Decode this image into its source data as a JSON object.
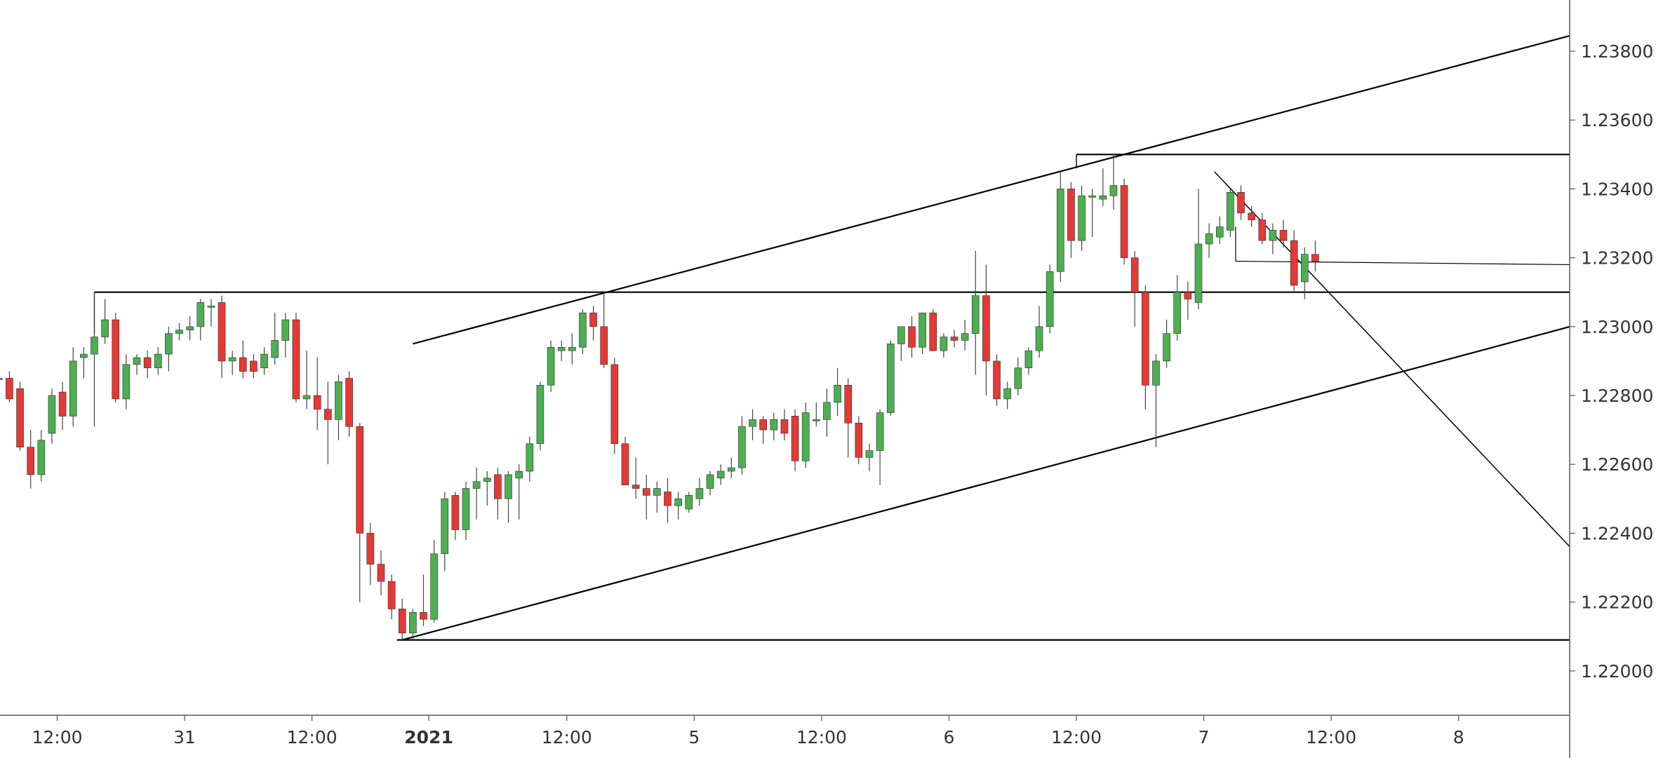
{
  "chart_data": {
    "type": "candlestick",
    "title": "",
    "xlabel": "",
    "ylabel": "",
    "ylim": [
      1.219,
      1.2395
    ],
    "grid": false,
    "colors": {
      "up": "#4caf50",
      "down": "#e53935",
      "wick": "#444444",
      "line": "#000000",
      "axis": "#333333"
    },
    "y_ticks": [
      "1.23800",
      "1.23600",
      "1.23400",
      "1.23200",
      "1.23000",
      "1.22800",
      "1.22600",
      "1.22400",
      "1.22200",
      "1.22000"
    ],
    "x_ticks": [
      {
        "label": "12:00",
        "bar": 5.5,
        "bold": false
      },
      {
        "label": "31",
        "bar": 17.5,
        "bold": false
      },
      {
        "label": "12:00",
        "bar": 29.5,
        "bold": false
      },
      {
        "label": "2021",
        "bar": 40.5,
        "bold": true
      },
      {
        "label": "12:00",
        "bar": 53.5,
        "bold": false
      },
      {
        "label": "5",
        "bar": 65.5,
        "bold": false
      },
      {
        "label": "12:00",
        "bar": 77.5,
        "bold": false
      },
      {
        "label": "6",
        "bar": 89.5,
        "bold": false
      },
      {
        "label": "12:00",
        "bar": 101.5,
        "bold": false
      },
      {
        "label": "7",
        "bar": 113.5,
        "bold": false
      },
      {
        "label": "12:00",
        "bar": 125.5,
        "bold": false
      },
      {
        "label": "8",
        "bar": 137.5,
        "bold": false
      }
    ],
    "candles": [
      [
        1.2285,
        1.2288,
        1.2283,
        1.2285
      ],
      [
        1.2285,
        1.2287,
        1.2278,
        1.2279
      ],
      [
        1.2282,
        1.2284,
        1.2264,
        1.2265
      ],
      [
        1.2265,
        1.227,
        1.2253,
        1.2257
      ],
      [
        1.2257,
        1.227,
        1.2255,
        1.2267
      ],
      [
        1.2269,
        1.2282,
        1.2266,
        1.228
      ],
      [
        1.2281,
        1.2284,
        1.227,
        1.2274
      ],
      [
        1.2274,
        1.2294,
        1.2271,
        1.229
      ],
      [
        1.2291,
        1.2294,
        1.2285,
        1.2292
      ],
      [
        1.2292,
        1.231,
        1.2271,
        1.2297
      ],
      [
        1.2297,
        1.2308,
        1.2295,
        1.2302
      ],
      [
        1.2302,
        1.2304,
        1.2278,
        1.2279
      ],
      [
        1.2279,
        1.2292,
        1.2276,
        1.2289
      ],
      [
        1.2289,
        1.2292,
        1.2286,
        1.2291
      ],
      [
        1.2291,
        1.2293,
        1.2285,
        1.2288
      ],
      [
        1.2288,
        1.2294,
        1.2286,
        1.2292
      ],
      [
        1.2292,
        1.23,
        1.2287,
        1.2298
      ],
      [
        1.2298,
        1.2301,
        1.2296,
        1.2299
      ],
      [
        1.2299,
        1.2303,
        1.2296,
        1.23
      ],
      [
        1.23,
        1.2308,
        1.2296,
        1.2307
      ],
      [
        1.2306,
        1.2308,
        1.23,
        1.2306
      ],
      [
        1.2307,
        1.2309,
        1.2285,
        1.229
      ],
      [
        1.229,
        1.2293,
        1.2286,
        1.2291
      ],
      [
        1.2291,
        1.2296,
        1.2285,
        1.2287
      ],
      [
        1.229,
        1.2292,
        1.2285,
        1.2287
      ],
      [
        1.2288,
        1.2294,
        1.2286,
        1.2292
      ],
      [
        1.2291,
        1.2304,
        1.2289,
        1.2296
      ],
      [
        1.2296,
        1.2304,
        1.2291,
        1.2302
      ],
      [
        1.2302,
        1.2304,
        1.2278,
        1.2279
      ],
      [
        1.2279,
        1.2293,
        1.2276,
        1.228
      ],
      [
        1.228,
        1.2291,
        1.227,
        1.2276
      ],
      [
        1.2276,
        1.2284,
        1.226,
        1.2273
      ],
      [
        1.2273,
        1.2286,
        1.2267,
        1.2284
      ],
      [
        1.2285,
        1.2287,
        1.2268,
        1.2271
      ],
      [
        1.2271,
        1.2272,
        1.222,
        1.224
      ],
      [
        1.224,
        1.2243,
        1.2225,
        1.2231
      ],
      [
        1.2231,
        1.2235,
        1.2222,
        1.2226
      ],
      [
        1.2226,
        1.2228,
        1.2215,
        1.2218
      ],
      [
        1.2218,
        1.2221,
        1.2209,
        1.2211
      ],
      [
        1.2211,
        1.2218,
        1.2209,
        1.2217
      ],
      [
        1.2217,
        1.2228,
        1.2213,
        1.2215
      ],
      [
        1.2215,
        1.2238,
        1.2214,
        1.2234
      ],
      [
        1.2234,
        1.2252,
        1.2229,
        1.225
      ],
      [
        1.2251,
        1.2252,
        1.2238,
        1.2241
      ],
      [
        1.2241,
        1.2255,
        1.2238,
        1.2253
      ],
      [
        1.2253,
        1.2259,
        1.2244,
        1.2255
      ],
      [
        1.2255,
        1.2258,
        1.2248,
        1.2256
      ],
      [
        1.2257,
        1.2259,
        1.2244,
        1.225
      ],
      [
        1.225,
        1.2258,
        1.2243,
        1.2257
      ],
      [
        1.2256,
        1.226,
        1.2244,
        1.2258
      ],
      [
        1.2258,
        1.2268,
        1.2255,
        1.2266
      ],
      [
        1.2266,
        1.2284,
        1.2264,
        1.2283
      ],
      [
        1.2283,
        1.2296,
        1.2281,
        1.2294
      ],
      [
        1.2293,
        1.2296,
        1.229,
        1.2294
      ],
      [
        1.2293,
        1.2298,
        1.2289,
        1.2294
      ],
      [
        1.2294,
        1.2305,
        1.2292,
        1.2304
      ],
      [
        1.2304,
        1.2306,
        1.2296,
        1.23
      ],
      [
        1.23,
        1.231,
        1.2288,
        1.2289
      ],
      [
        1.2289,
        1.2291,
        1.2263,
        1.2266
      ],
      [
        1.2266,
        1.2268,
        1.2254,
        1.2254
      ],
      [
        1.2254,
        1.2262,
        1.225,
        1.2253
      ],
      [
        1.2253,
        1.2257,
        1.2244,
        1.2251
      ],
      [
        1.2251,
        1.2255,
        1.2246,
        1.2253
      ],
      [
        1.2252,
        1.2256,
        1.2243,
        1.2248
      ],
      [
        1.2248,
        1.2252,
        1.2244,
        1.225
      ],
      [
        1.2247,
        1.2252,
        1.2246,
        1.2251
      ],
      [
        1.225,
        1.2256,
        1.2248,
        1.2253
      ],
      [
        1.2253,
        1.2258,
        1.2251,
        1.2257
      ],
      [
        1.2256,
        1.226,
        1.2254,
        1.2258
      ],
      [
        1.2258,
        1.2262,
        1.2256,
        1.2259
      ],
      [
        1.2259,
        1.2274,
        1.2257,
        1.2271
      ],
      [
        1.2271,
        1.2276,
        1.2267,
        1.2273
      ],
      [
        1.2273,
        1.2274,
        1.2266,
        1.227
      ],
      [
        1.227,
        1.2275,
        1.2267,
        1.2273
      ],
      [
        1.2273,
        1.2276,
        1.2267,
        1.2269
      ],
      [
        1.2274,
        1.2276,
        1.2258,
        1.2261
      ],
      [
        1.2261,
        1.2278,
        1.2259,
        1.2275
      ],
      [
        1.2273,
        1.2278,
        1.2271,
        1.2273
      ],
      [
        1.2273,
        1.2282,
        1.2268,
        1.2278
      ],
      [
        1.2278,
        1.2288,
        1.2274,
        1.2283
      ],
      [
        1.2283,
        1.2285,
        1.2262,
        1.2272
      ],
      [
        1.2272,
        1.2274,
        1.226,
        1.2262
      ],
      [
        1.2262,
        1.2266,
        1.2258,
        1.2264
      ],
      [
        1.2264,
        1.2276,
        1.2254,
        1.2275
      ],
      [
        1.2275,
        1.2296,
        1.2274,
        1.2295
      ],
      [
        1.2295,
        1.23,
        1.229,
        1.23
      ],
      [
        1.23,
        1.2303,
        1.2291,
        1.2294
      ],
      [
        1.2294,
        1.2304,
        1.2292,
        1.2304
      ],
      [
        1.2304,
        1.2305,
        1.2293,
        1.2293
      ],
      [
        1.2293,
        1.2298,
        1.2291,
        1.2297
      ],
      [
        1.2297,
        1.2299,
        1.2294,
        1.2296
      ],
      [
        1.2296,
        1.2302,
        1.2293,
        1.2298
      ],
      [
        1.2298,
        1.2322,
        1.2286,
        1.2309
      ],
      [
        1.2309,
        1.2318,
        1.228,
        1.229
      ],
      [
        1.229,
        1.2292,
        1.2277,
        1.2279
      ],
      [
        1.2279,
        1.2284,
        1.2276,
        1.2282
      ],
      [
        1.2282,
        1.2291,
        1.228,
        1.2288
      ],
      [
        1.2288,
        1.2294,
        1.2286,
        1.2293
      ],
      [
        1.2293,
        1.2306,
        1.2291,
        1.23
      ],
      [
        1.23,
        1.2318,
        1.2298,
        1.2316
      ],
      [
        1.2316,
        1.2345,
        1.2313,
        1.234
      ],
      [
        1.234,
        1.2342,
        1.232,
        1.2325
      ],
      [
        1.2325,
        1.2341,
        1.2322,
        1.2338
      ],
      [
        1.2338,
        1.234,
        1.2326,
        1.2338
      ],
      [
        1.2337,
        1.2346,
        1.2335,
        1.2338
      ],
      [
        1.2338,
        1.235,
        1.2334,
        1.2341
      ],
      [
        1.2341,
        1.2343,
        1.2318,
        1.232
      ],
      [
        1.232,
        1.2322,
        1.23,
        1.231
      ],
      [
        1.231,
        1.2312,
        1.2276,
        1.2283
      ],
      [
        1.2283,
        1.2292,
        1.2265,
        1.229
      ],
      [
        1.229,
        1.2302,
        1.2288,
        1.2298
      ],
      [
        1.2298,
        1.2315,
        1.2296,
        1.231
      ],
      [
        1.231,
        1.2313,
        1.2302,
        1.2308
      ],
      [
        1.2307,
        1.234,
        1.2305,
        1.2324
      ],
      [
        1.2324,
        1.233,
        1.232,
        1.2327
      ],
      [
        1.2326,
        1.2332,
        1.2324,
        1.2329
      ],
      [
        1.2328,
        1.234,
        1.2326,
        1.2339
      ],
      [
        1.2339,
        1.2341,
        1.2331,
        1.2333
      ],
      [
        1.2333,
        1.2335,
        1.2329,
        1.2331
      ],
      [
        1.2331,
        1.2333,
        1.2324,
        1.2325
      ],
      [
        1.2325,
        1.233,
        1.2321,
        1.2328
      ],
      [
        1.2328,
        1.2331,
        1.2323,
        1.2325
      ],
      [
        1.2325,
        1.2328,
        1.231,
        1.2312
      ],
      [
        1.2313,
        1.2323,
        1.2308,
        1.2321
      ],
      [
        1.2321,
        1.2325,
        1.2316,
        1.2319
      ]
    ],
    "drawings": [
      {
        "name": "rising-channel-upper-line",
        "x1": 39,
        "y1": 1.2295,
        "x2": 148,
        "y2": 1.23845,
        "width": 2.2
      },
      {
        "name": "rising-channel-lower-line",
        "x1": 38,
        "y1": 1.2209,
        "x2": 148,
        "y2": 1.23,
        "width": 2.2
      },
      {
        "name": "resistance-line",
        "x1": 9,
        "y1": 1.231,
        "x2": 148,
        "y2": 1.231,
        "width": 2.2
      },
      {
        "name": "resistance-marker-vertical",
        "x1": 9,
        "y1": 1.231,
        "x2": 9,
        "y2": 1.2298,
        "width": 1.4
      },
      {
        "name": "top-line",
        "x1": 101.5,
        "y1": 1.235,
        "x2": 148,
        "y2": 1.235,
        "width": 2.2
      },
      {
        "name": "top-marker-vertical",
        "x1": 101.5,
        "y1": 1.235,
        "x2": 101.5,
        "y2": 1.2346,
        "width": 1.4
      },
      {
        "name": "bottom-line",
        "x1": 37.5,
        "y1": 1.2209,
        "x2": 148,
        "y2": 1.2209,
        "width": 2.2
      },
      {
        "name": "descending-trendline",
        "x1": 114.5,
        "y1": 1.2345,
        "x2": 148,
        "y2": 1.2236,
        "width": 1.5
      },
      {
        "name": "current-level-line",
        "x1": 116.5,
        "y1": 1.2319,
        "x2": 148,
        "y2": 1.2318,
        "width": 1.2
      },
      {
        "name": "current-level-marker-vertical",
        "x1": 116.5,
        "y1": 1.2319,
        "x2": 116.5,
        "y2": 1.2329,
        "width": 1.2
      }
    ]
  }
}
